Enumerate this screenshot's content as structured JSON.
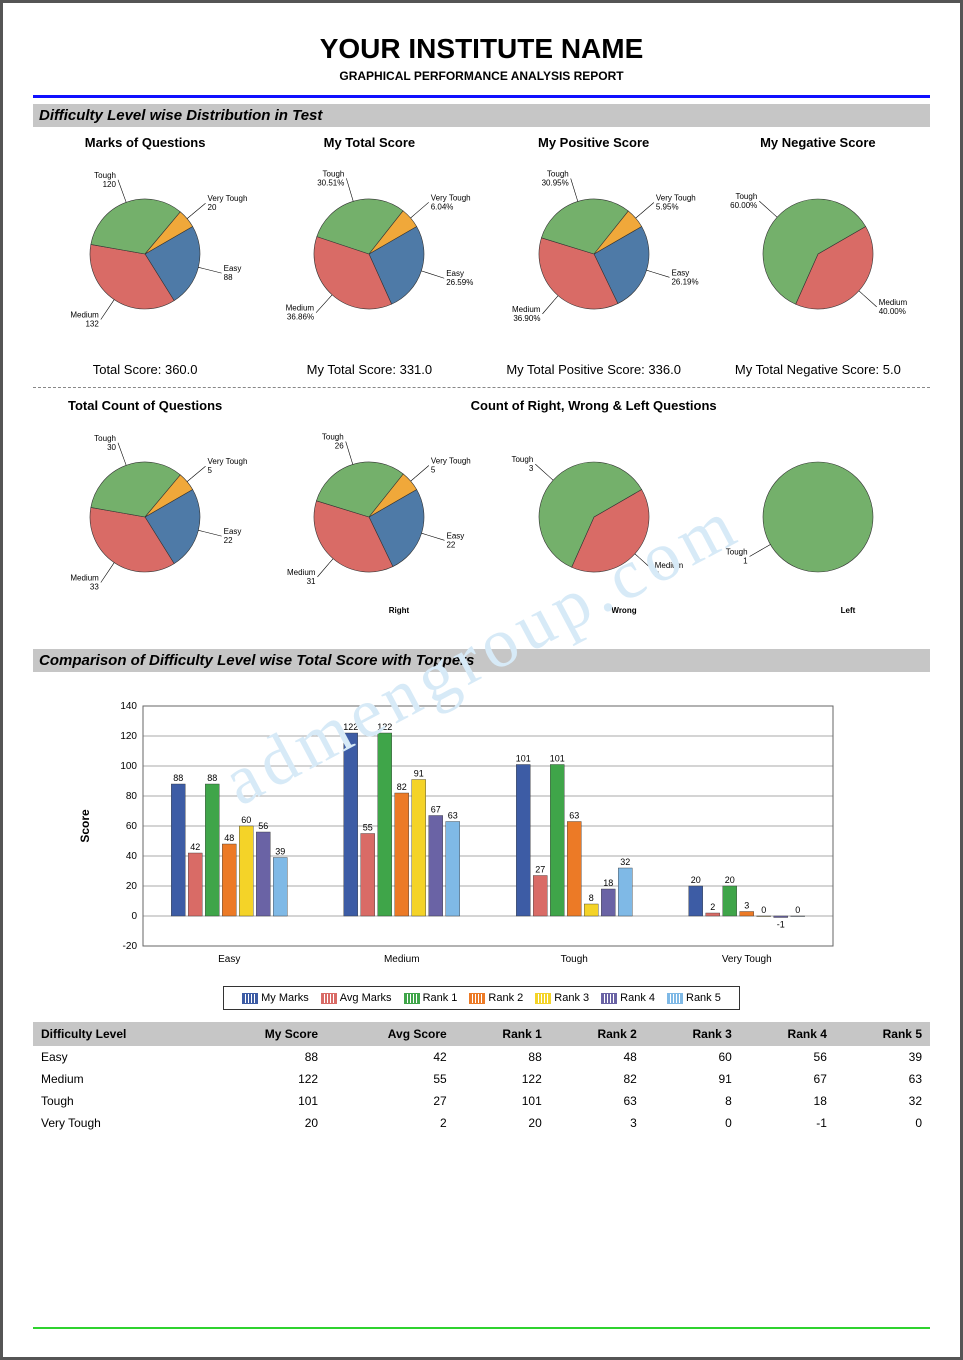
{
  "header": {
    "title": "YOUR INSTITUTE NAME",
    "subtitle": "GRAPHICAL PERFORMANCE ANALYSIS REPORT"
  },
  "colors": {
    "easy": "#4e7aa7",
    "medium": "#d96b66",
    "tough": "#74b06b",
    "vtough": "#f0a83a",
    "rule_blue": "#1010ff",
    "rule_green": "#2fd22f",
    "section_bg": "#c6c6c6",
    "bar_series": [
      "#3d5ca5",
      "#d96b66",
      "#3fa549",
      "#ec7a26",
      "#f4d328",
      "#6a63a5",
      "#7fb9e6"
    ],
    "grid": "#555",
    "chart_border": "#666"
  },
  "section1": {
    "heading": "Difficulty Level wise Distribution in Test",
    "pies": [
      {
        "title": "Marks of Questions",
        "slices": [
          {
            "name": "Easy",
            "value": 88,
            "label": "Easy",
            "sub": "88",
            "color": "#4e7aa7"
          },
          {
            "name": "Medium",
            "value": 132,
            "label": "Medium",
            "sub": "132",
            "color": "#d96b66"
          },
          {
            "name": "Tough",
            "value": 120,
            "label": "Tough",
            "sub": "120",
            "color": "#74b06b"
          },
          {
            "name": "Very Tough",
            "value": 20,
            "label": "Very Tough",
            "sub": "20",
            "color": "#f0a83a"
          }
        ],
        "footer": "Total Score: 360.0"
      },
      {
        "title": "My Total Score",
        "slices": [
          {
            "name": "Easy",
            "value": 26.59,
            "label": "Easy",
            "sub": "26.59%",
            "color": "#4e7aa7"
          },
          {
            "name": "Medium",
            "value": 36.86,
            "label": "Medium",
            "sub": "36.86%",
            "color": "#d96b66"
          },
          {
            "name": "Tough",
            "value": 30.51,
            "label": "Tough",
            "sub": "30.51%",
            "color": "#74b06b"
          },
          {
            "name": "Very Tough",
            "value": 6.04,
            "label": "Very Tough",
            "sub": "6.04%",
            "color": "#f0a83a"
          }
        ],
        "footer": "My Total Score: 331.0"
      },
      {
        "title": "My Positive Score",
        "slices": [
          {
            "name": "Easy",
            "value": 26.19,
            "label": "Easy",
            "sub": "26.19%",
            "color": "#4e7aa7"
          },
          {
            "name": "Medium",
            "value": 36.9,
            "label": "Medium",
            "sub": "36.90%",
            "color": "#d96b66"
          },
          {
            "name": "Tough",
            "value": 30.95,
            "label": "Tough",
            "sub": "30.95%",
            "color": "#74b06b"
          },
          {
            "name": "Very Tough",
            "value": 5.95,
            "label": "Very Tough",
            "sub": "5.95%",
            "color": "#f0a83a"
          }
        ],
        "footer": "My Total Positive Score:  336.0"
      },
      {
        "title": "My Negative Score",
        "slices": [
          {
            "name": "Medium",
            "value": 40,
            "label": "Medium",
            "sub": "40.00%",
            "color": "#d96b66"
          },
          {
            "name": "Tough",
            "value": 60,
            "label": "Tough",
            "sub": "60.00%",
            "color": "#74b06b"
          }
        ],
        "footer": "My Total Negative Score: 5.0"
      }
    ],
    "row2_titles": [
      "Total Count of Questions",
      "Count of Right, Wrong & Left Questions"
    ],
    "pies2": [
      {
        "caption": "",
        "slices": [
          {
            "name": "Easy",
            "value": 22,
            "label": "Easy",
            "sub": "22",
            "color": "#4e7aa7"
          },
          {
            "name": "Medium",
            "value": 33,
            "label": "Medium",
            "sub": "33",
            "color": "#d96b66"
          },
          {
            "name": "Tough",
            "value": 30,
            "label": "Tough",
            "sub": "30",
            "color": "#74b06b"
          },
          {
            "name": "Very Tough",
            "value": 5,
            "label": "Very Tough",
            "sub": "5",
            "color": "#f0a83a"
          }
        ]
      },
      {
        "caption": "Right",
        "slices": [
          {
            "name": "Easy",
            "value": 22,
            "label": "Easy",
            "sub": "22",
            "color": "#4e7aa7"
          },
          {
            "name": "Medium",
            "value": 31,
            "label": "Medium",
            "sub": "31",
            "color": "#d96b66"
          },
          {
            "name": "Tough",
            "value": 26,
            "label": "Tough",
            "sub": "26",
            "color": "#74b06b"
          },
          {
            "name": "Very Tough",
            "value": 5,
            "label": "Very Tough",
            "sub": "5",
            "color": "#f0a83a"
          }
        ]
      },
      {
        "caption": "Wrong",
        "slices": [
          {
            "name": "Medium",
            "value": 2,
            "label": "Medium",
            "sub": "2",
            "color": "#d96b66"
          },
          {
            "name": "Tough",
            "value": 3,
            "label": "Tough",
            "sub": "3",
            "color": "#74b06b"
          }
        ]
      },
      {
        "caption": "Left",
        "slices": [
          {
            "name": "Tough",
            "value": 1,
            "label": "Tough",
            "sub": "1",
            "color": "#74b06b"
          }
        ]
      }
    ]
  },
  "section2": {
    "heading": "Comparison of Difficulty Level wise Total Score with Toppers",
    "ylabel": "Score",
    "categories": [
      "Easy",
      "Medium",
      "Tough",
      "Very Tough"
    ],
    "series": [
      "My Marks",
      "Avg Marks",
      "Rank 1",
      "Rank 2",
      "Rank 3",
      "Rank 4",
      "Rank 5"
    ],
    "data": [
      [
        88,
        42,
        88,
        48,
        60,
        56,
        39
      ],
      [
        122,
        55,
        122,
        82,
        91,
        67,
        63
      ],
      [
        101,
        27,
        101,
        63,
        8,
        18,
        32
      ],
      [
        20,
        2,
        20,
        3,
        0,
        -1,
        0
      ]
    ],
    "ylim": [
      -20,
      140
    ],
    "ytick_step": 20,
    "grid_color": "#555",
    "border_color": "#666",
    "colors": [
      "#3d5ca5",
      "#d96b66",
      "#3fa549",
      "#ec7a26",
      "#f4d328",
      "#6a63a5",
      "#7fb9e6"
    ]
  },
  "table": {
    "columns": [
      "Difficulty Level",
      "My Score",
      "Avg Score",
      "Rank 1",
      "Rank 2",
      "Rank 3",
      "Rank 4",
      "Rank 5"
    ],
    "rows": [
      [
        "Easy",
        88,
        42,
        88,
        48,
        60,
        56,
        39
      ],
      [
        "Medium",
        122,
        55,
        122,
        82,
        91,
        67,
        63
      ],
      [
        "Tough",
        101,
        27,
        101,
        63,
        8,
        18,
        32
      ],
      [
        "Very Tough",
        20,
        2,
        20,
        3,
        0,
        -1,
        0
      ]
    ]
  },
  "watermark": "admengroup.com"
}
